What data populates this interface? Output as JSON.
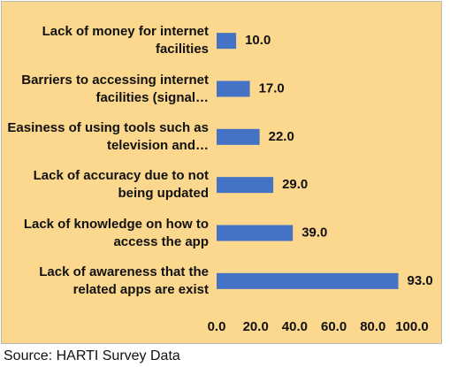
{
  "chart_data": {
    "type": "bar",
    "orientation": "horizontal",
    "categories": [
      "Lack of money for internet facilities",
      "Barriers to accessing internet facilities (signal…",
      "Easiness of using tools such as television and…",
      "Lack of accuracy due to not being updated",
      "Lack of knowledge on how to access the app",
      "Lack of awareness that the related apps are exist"
    ],
    "values": [
      10,
      17,
      22,
      29,
      39,
      93
    ],
    "value_labels": [
      "10.0",
      "17.0",
      "22.0",
      "29.0",
      "39.0",
      "93.0"
    ],
    "color": "#4472c4",
    "xlim": [
      0,
      100
    ],
    "xticks": [
      {
        "value": 0,
        "label": "0.0"
      },
      {
        "value": 20,
        "label": "20.0"
      },
      {
        "value": 40,
        "label": "40.0"
      },
      {
        "value": 60,
        "label": "60.0"
      },
      {
        "value": 80,
        "label": "80.0"
      },
      {
        "value": 100,
        "label": "100.0"
      }
    ],
    "grid": false,
    "source": "Source: HARTI Survey Data"
  }
}
